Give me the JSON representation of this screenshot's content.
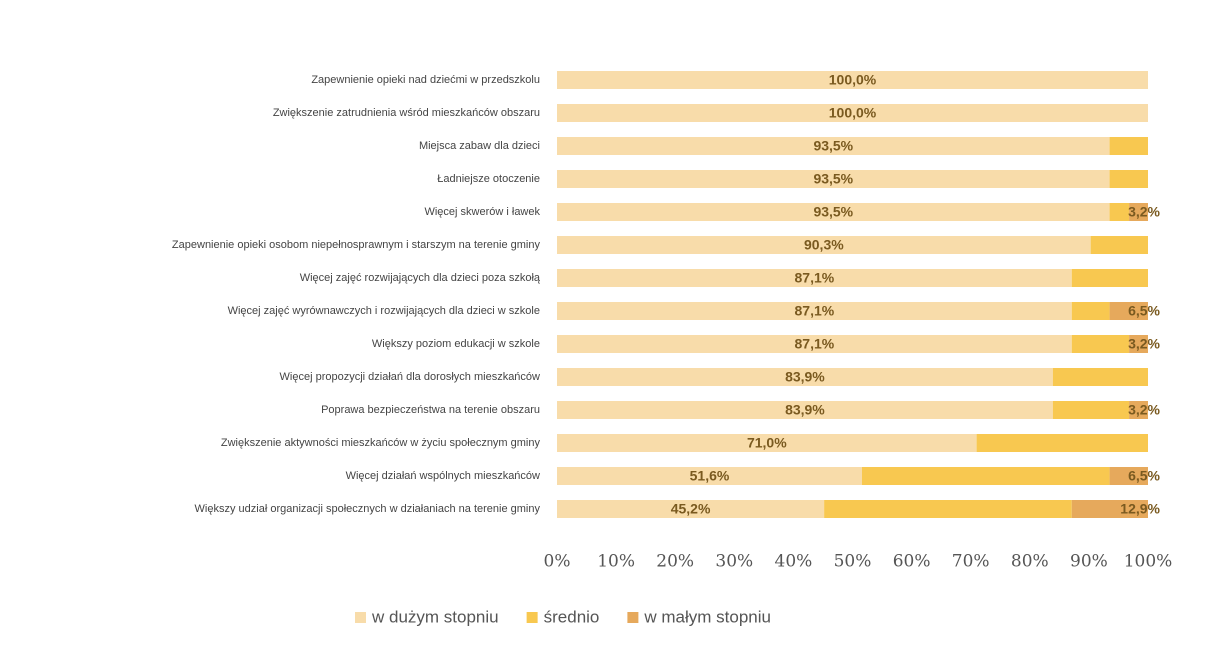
{
  "chart_data": {
    "type": "stacked-bar-horizontal",
    "categories": [
      "Zapewnienie opieki nad dziećmi w przedszkolu",
      "Zwiększenie zatrudnienia wśród mieszkańców obszaru",
      "Miejsca zabaw dla dzieci",
      "Ładniejsze otoczenie",
      "Więcej skwerów i ławek",
      "Zapewnienie opieki osobom niepełnosprawnym i starszym na terenie gminy",
      "Więcej zajęć rozwijających dla dzieci poza szkołą",
      "Więcej zajęć wyrównawczych i rozwijających dla dzieci w szkole",
      "Większy poziom edukacji w szkole",
      "Więcej propozycji działań dla dorosłych mieszkańców",
      "Poprawa bezpieczeństwa na terenie obszaru",
      "Zwiększenie aktywności mieszkańców w życiu społecznym gminy",
      "Więcej działań wspólnych mieszkańców",
      "Większy udział organizacji społecznych w działaniach na terenie gminy"
    ],
    "series": [
      {
        "name": "w dużym stopniu",
        "color": "#f8dcaa",
        "values": [
          100.0,
          100.0,
          93.5,
          93.5,
          93.5,
          90.3,
          87.1,
          87.1,
          87.1,
          83.9,
          83.9,
          71.0,
          51.6,
          45.2
        ],
        "value_labels": [
          "100,0%",
          "100,0%",
          "93,5%",
          "93,5%",
          "93,5%",
          "90,3%",
          "87,1%",
          "87,1%",
          "87,1%",
          "83,9%",
          "83,9%",
          "71,0%",
          "51,6%",
          "45,2%"
        ]
      },
      {
        "name": "średnio",
        "color": "#f8c850",
        "values": [
          0,
          0,
          6.5,
          6.5,
          3.3,
          9.7,
          12.9,
          6.4,
          9.7,
          16.1,
          12.9,
          29.0,
          41.9,
          41.9
        ]
      },
      {
        "name": "w małym stopniu",
        "color": "#e6a95c",
        "values": [
          0,
          0,
          0,
          0,
          3.2,
          0,
          0,
          6.5,
          3.2,
          0,
          3.2,
          0,
          6.5,
          12.9
        ],
        "value_labels": [
          null,
          null,
          null,
          null,
          "3,2%",
          null,
          null,
          "6,5%",
          "3,2%",
          null,
          "3,2%",
          null,
          "6,5%",
          "12,9%"
        ]
      }
    ],
    "xlim": [
      0,
      100
    ],
    "xticks": [
      {
        "value": 0,
        "label": "0%"
      },
      {
        "value": 10,
        "label": "10%"
      },
      {
        "value": 20,
        "label": "20%"
      },
      {
        "value": 30,
        "label": "30%"
      },
      {
        "value": 40,
        "label": "40%"
      },
      {
        "value": 50,
        "label": "50%"
      },
      {
        "value": 60,
        "label": "60%"
      },
      {
        "value": 70,
        "label": "70%"
      },
      {
        "value": 80,
        "label": "80%"
      },
      {
        "value": 90,
        "label": "90%"
      },
      {
        "value": 100,
        "label": "100%"
      }
    ],
    "legend": "bottom"
  }
}
